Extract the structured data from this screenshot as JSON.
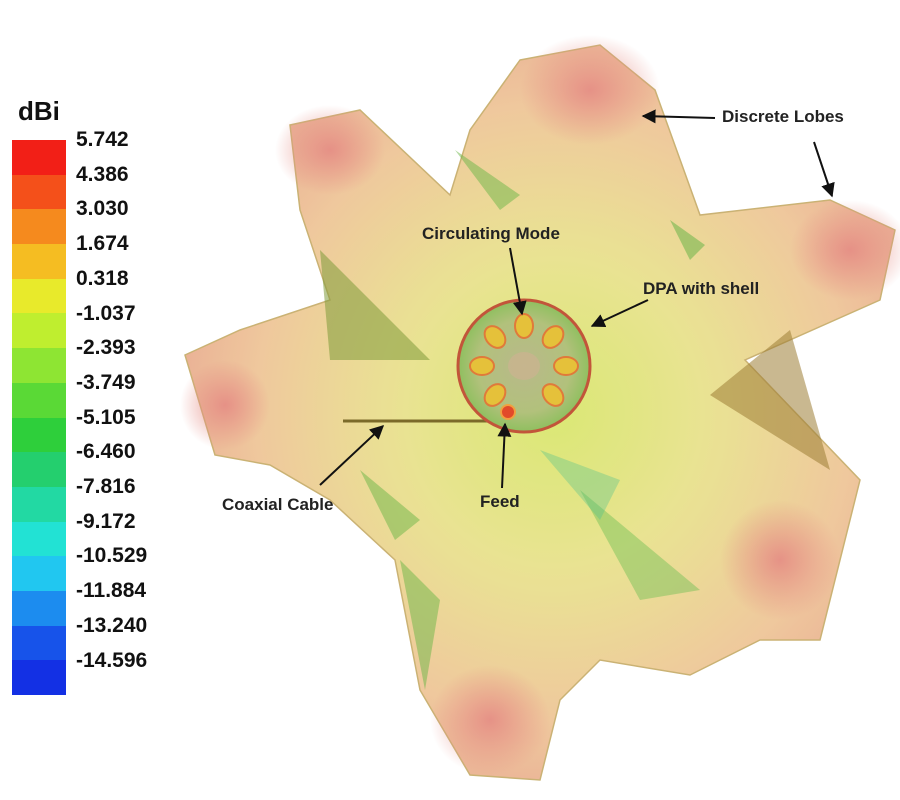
{
  "legend": {
    "unit": "dBi",
    "ticks": [
      "5.742",
      "4.386",
      "3.030",
      "1.674",
      "0.318",
      "-1.037",
      "-2.393",
      "-3.749",
      "-5.105",
      "-6.460",
      "-7.816",
      "-9.172",
      "-10.529",
      "-11.884",
      "-13.240",
      "-14.596"
    ],
    "colors": [
      "#f21f17",
      "#f4501a",
      "#f58a1e",
      "#f5bd22",
      "#e8ea2b",
      "#bfee2f",
      "#8ee533",
      "#5ad936",
      "#2ecf3b",
      "#24cf6e",
      "#22d9a3",
      "#22e2d4",
      "#21c7f0",
      "#1c8cef",
      "#1753ea",
      "#1330e4"
    ]
  },
  "annotations": {
    "discrete_lobes": "Discrete Lobes",
    "circulating_mode": "Circulating Mode",
    "dpa_with_shell": "DPA with shell",
    "coaxial_cable": "Coaxial Cable",
    "feed": "Feed"
  }
}
